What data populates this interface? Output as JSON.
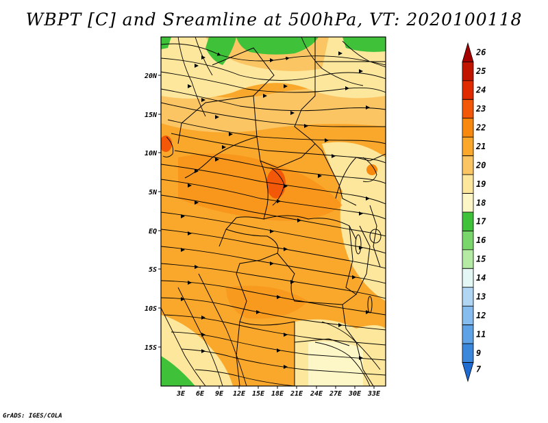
{
  "title": "WBPT [C] and Sreamline at 500hPa, VT: 2020100118",
  "credit": "GrADS: IGES/COLA",
  "y_axis": {
    "labels": [
      "20N",
      "15N",
      "10N",
      "5N",
      "EQ",
      "5S",
      "10S",
      "15S"
    ],
    "lat_values": [
      20,
      15,
      10,
      5,
      0,
      -5,
      -10,
      -15
    ]
  },
  "x_axis": {
    "labels": [
      "3E",
      "6E",
      "9E",
      "12E",
      "15E",
      "18E",
      "21E",
      "24E",
      "27E",
      "30E",
      "33E"
    ],
    "lon_values": [
      3,
      6,
      9,
      12,
      15,
      18,
      21,
      24,
      27,
      30,
      33
    ]
  },
  "colorbar": {
    "labels": [
      "26",
      "25",
      "24",
      "23",
      "22",
      "21",
      "20",
      "19",
      "18",
      "17",
      "16",
      "15",
      "14",
      "13",
      "12",
      "11",
      "9",
      "7"
    ],
    "colors": [
      "#a50000",
      "#c21500",
      "#e02a00",
      "#f25808",
      "#f7890e",
      "#f9a82c",
      "#fbc564",
      "#fde79c",
      "#fdf6c6",
      "#3fc13a",
      "#78d66b",
      "#b4eaa4",
      "#e4f7f4",
      "#b0d6f4",
      "#86bdee",
      "#5fa3e6",
      "#3b87dc",
      "#1e6bd2"
    ]
  },
  "map": {
    "field": "wet-bulb potential temperature",
    "level": "500hPa",
    "valid_time": "2020100118"
  }
}
